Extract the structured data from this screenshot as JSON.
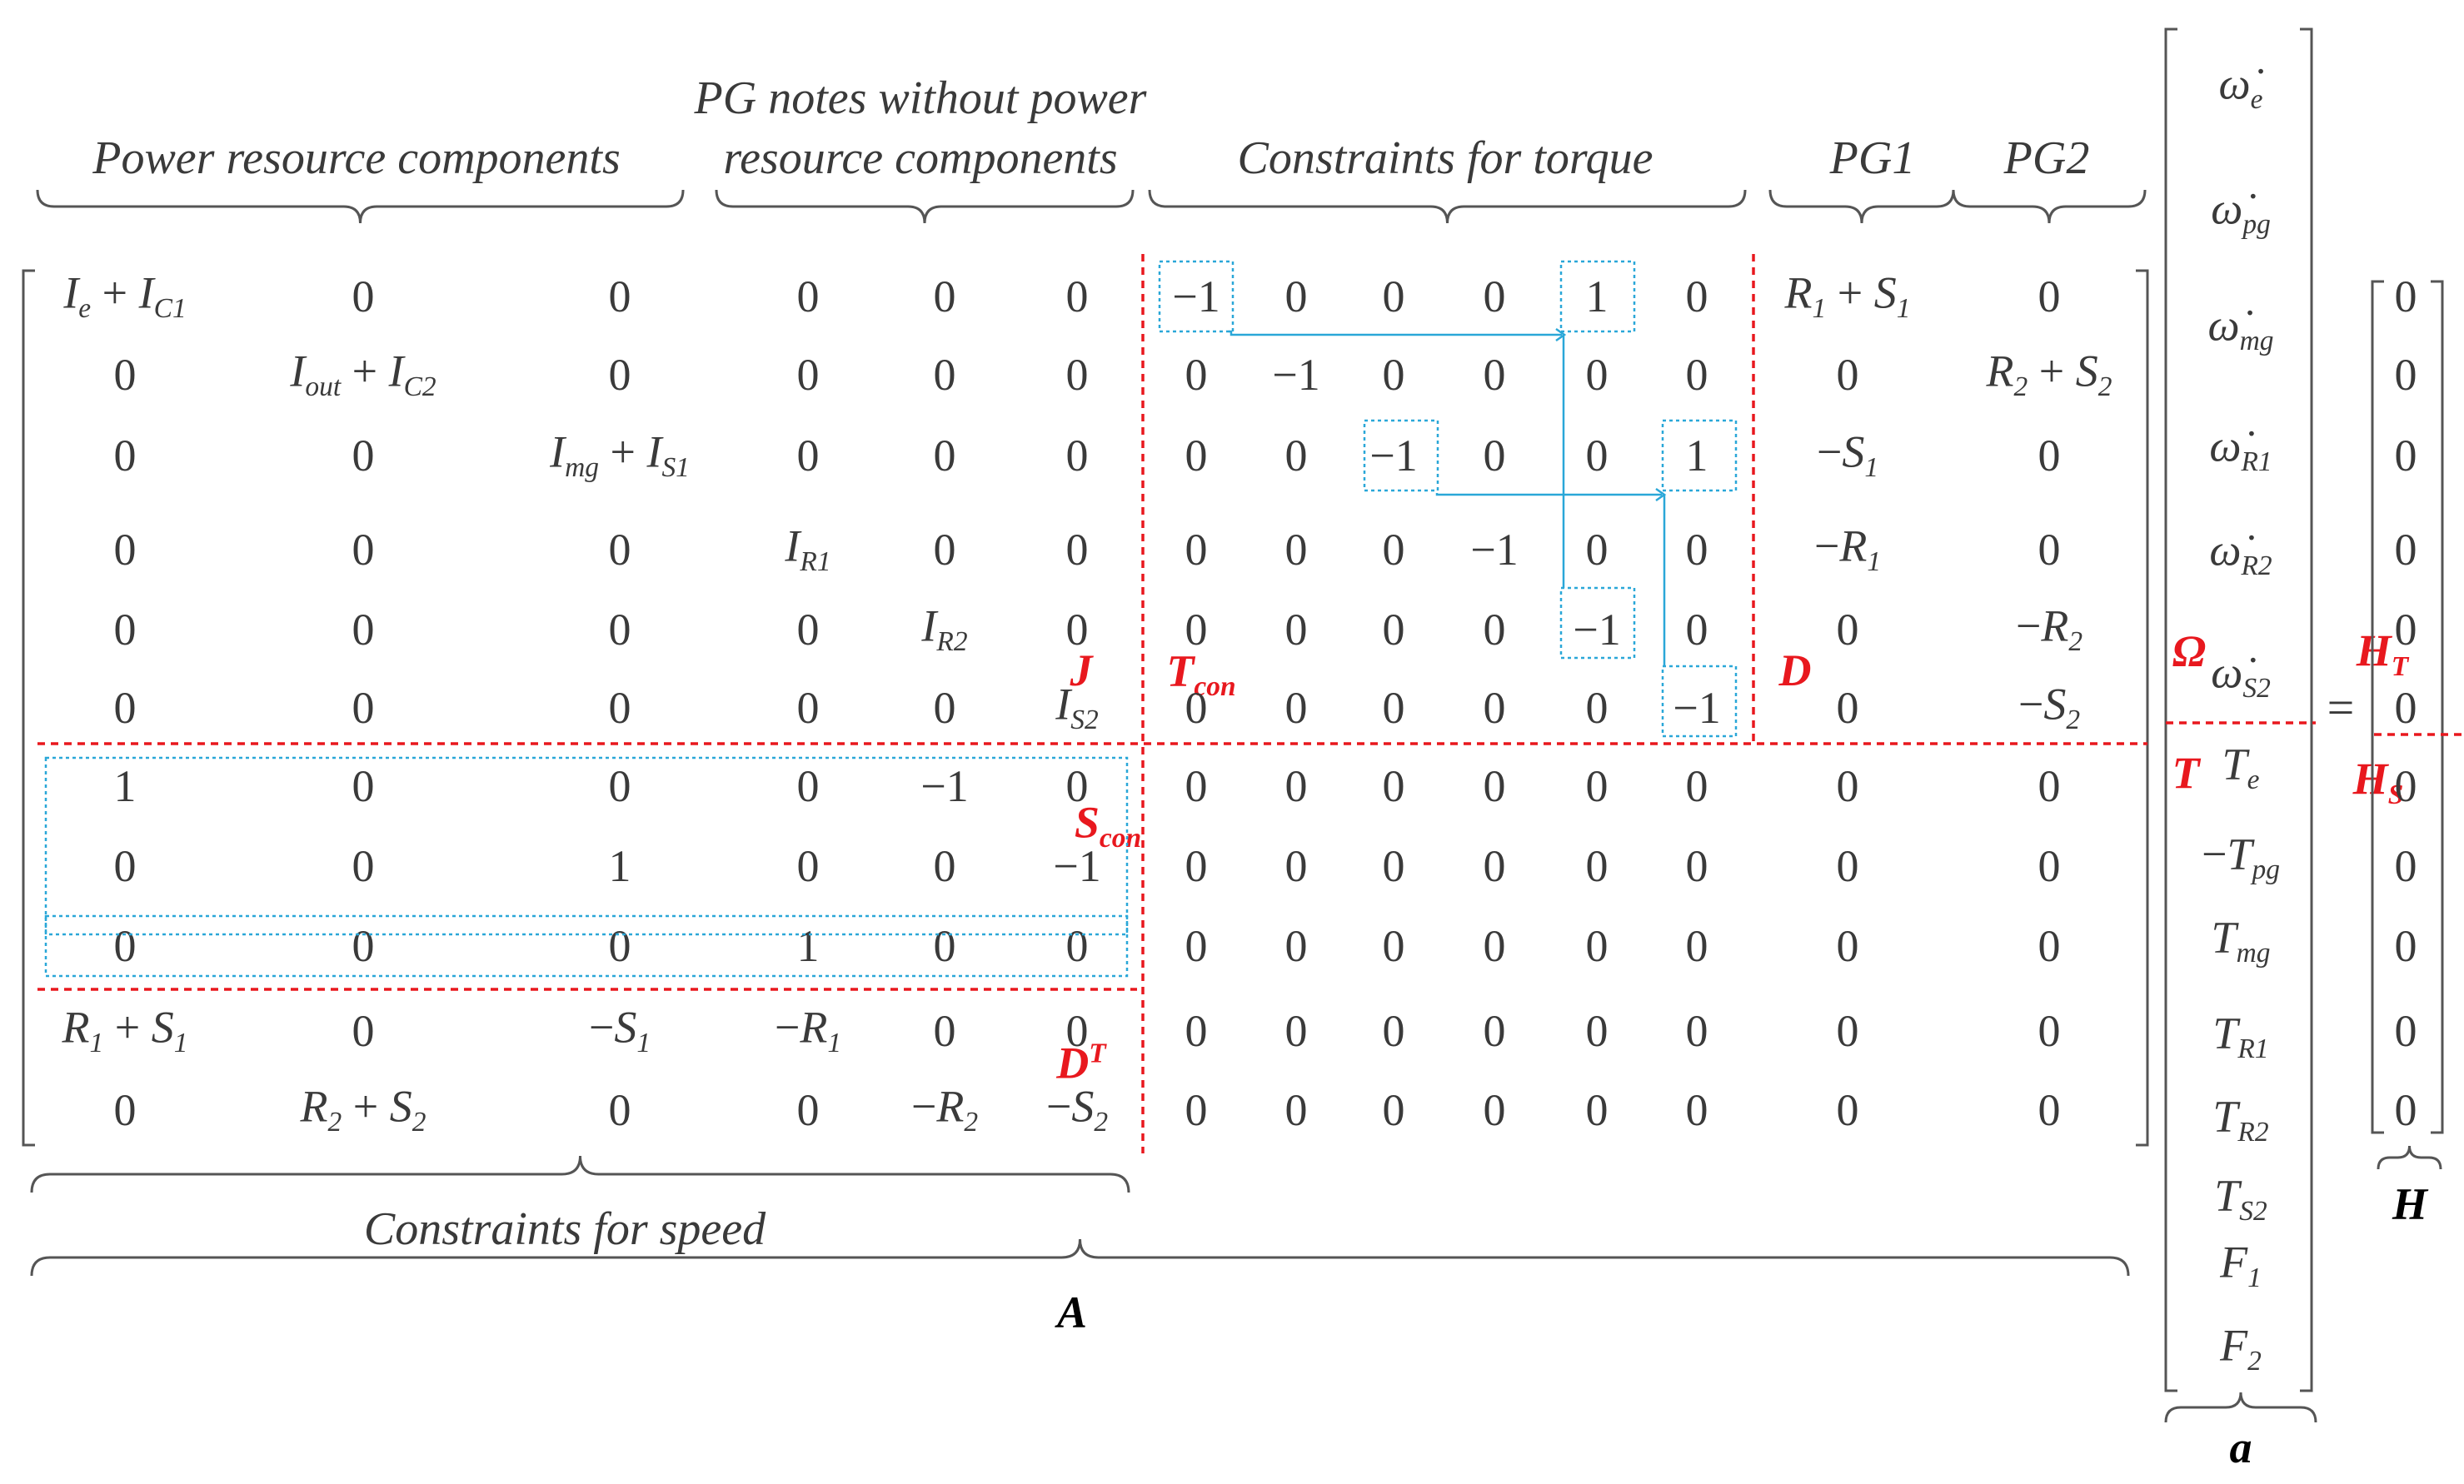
{
  "header_labels": {
    "power_resource": "Power resource components",
    "pg_notes_line1": "PG notes without power",
    "pg_notes_line2": "resource components",
    "torque": "Constraints for torque",
    "pg1": "PG1",
    "pg2": "PG2"
  },
  "bottom_labels": {
    "speed": "Constraints for speed",
    "A": "A",
    "a": "a",
    "H": "H"
  },
  "block_labels": {
    "J": "J",
    "T_con": "T",
    "T_con_sub": "con",
    "D": "D",
    "Omega": "Ω",
    "H_T": "H",
    "H_T_sub": "T",
    "T": "T",
    "H_S": "H",
    "H_S_sub": "S",
    "S_con": "S",
    "S_con_sub": "con",
    "D_T": "D",
    "D_T_sup": "T"
  },
  "matrix_A": [
    [
      "I_e + I_C1",
      "0",
      "0",
      "0",
      "0",
      "0",
      "−1",
      "0",
      "0",
      "0",
      "1",
      "0",
      "R_1 + S_1",
      "0"
    ],
    [
      "0",
      "I_out + I_C2",
      "0",
      "0",
      "0",
      "0",
      "0",
      "−1",
      "0",
      "0",
      "0",
      "0",
      "0",
      "R_2 + S_2"
    ],
    [
      "0",
      "0",
      "I_mg + I_S1",
      "0",
      "0",
      "0",
      "0",
      "0",
      "−1",
      "0",
      "0",
      "1",
      "−S_1",
      "0"
    ],
    [
      "0",
      "0",
      "0",
      "I_R1",
      "0",
      "0",
      "0",
      "0",
      "0",
      "−1",
      "0",
      "0",
      "−R_1",
      "0"
    ],
    [
      "0",
      "0",
      "0",
      "0",
      "I_R2",
      "0",
      "0",
      "0",
      "0",
      "0",
      "−1",
      "0",
      "0",
      "−R_2"
    ],
    [
      "0",
      "0",
      "0",
      "0",
      "0",
      "I_S2",
      "0",
      "0",
      "0",
      "0",
      "0",
      "−1",
      "0",
      "−S_2"
    ],
    [
      "1",
      "0",
      "0",
      "0",
      "−1",
      "0",
      "0",
      "0",
      "0",
      "0",
      "0",
      "0",
      "0",
      "0"
    ],
    [
      "0",
      "0",
      "1",
      "0",
      "0",
      "−1",
      "0",
      "0",
      "0",
      "0",
      "0",
      "0",
      "0",
      "0"
    ],
    [
      "0",
      "0",
      "0",
      "1",
      "0",
      "0",
      "0",
      "0",
      "0",
      "0",
      "0",
      "0",
      "0",
      "0"
    ],
    [
      "R_1 + S_1",
      "0",
      "−S_1",
      "−R_1",
      "0",
      "0",
      "0",
      "0",
      "0",
      "0",
      "0",
      "0",
      "0",
      "0"
    ],
    [
      "0",
      "R_2 + S_2",
      "0",
      "0",
      "−R_2",
      "−S_2",
      "0",
      "0",
      "0",
      "0",
      "0",
      "0",
      "0",
      "0"
    ]
  ],
  "vector_a": [
    "ω̇_e",
    "ω̇_pg",
    "ω̇_mg",
    "ω̇_R1",
    "ω̇_R2",
    "ω̇_S2",
    "T_e",
    "−T_pg",
    "T_mg",
    "T_R1",
    "T_R2",
    "T_S2",
    "F_1",
    "F_2"
  ],
  "vector_H": [
    "0",
    "0",
    "0",
    "0",
    "0",
    "0",
    "0",
    "0",
    "0",
    "0",
    "0"
  ],
  "equals": "=",
  "colors": {
    "text": "#3a3a3a",
    "red": "#e8181e",
    "cyan": "#2aa7d8",
    "black": "#000000"
  }
}
